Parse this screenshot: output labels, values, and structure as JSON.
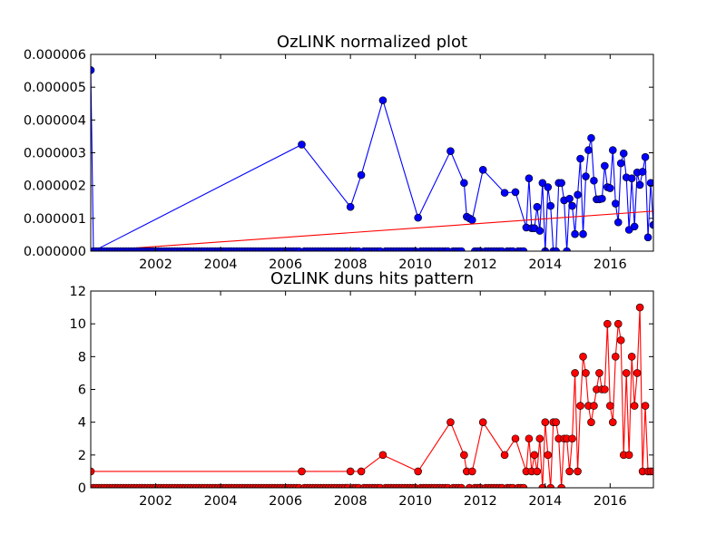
{
  "chart_data": [
    {
      "type": "line",
      "title": "OzLINK normalized plot",
      "xlabel": "",
      "ylabel": "",
      "xlim": [
        2000.0,
        2017.333
      ],
      "ylim": [
        0,
        6e-06
      ],
      "x_ticks": [
        "2002",
        "2004",
        "2006",
        "2008",
        "2010",
        "2012",
        "2014",
        "2016"
      ],
      "y_ticks": [
        "0.000000",
        "0.000001",
        "0.000002",
        "0.000003",
        "0.000004",
        "0.000005",
        "0.000006"
      ],
      "grid": false,
      "colors": {
        "series": "#0000ff",
        "trend": "#ff0000",
        "axes": "#000000"
      },
      "series": [
        {
          "name": "",
          "x": [
            2000.0,
            2000.083,
            2006.5,
            2008.0,
            2008.333,
            2009.0,
            2010.083,
            2011.083,
            2011.5,
            2011.583,
            2011.667,
            2011.75,
            2012.083,
            2012.75,
            2013.083,
            2013.417,
            2013.5,
            2013.583,
            2013.667,
            2013.75,
            2013.833,
            2013.917,
            2014.0,
            2014.083,
            2014.167,
            2014.25,
            2014.333,
            2014.417,
            2014.5,
            2014.583,
            2014.667,
            2014.75,
            2014.833,
            2014.917,
            2015.0,
            2015.083,
            2015.167,
            2015.25,
            2015.333,
            2015.417,
            2015.5,
            2015.583,
            2015.667,
            2015.75,
            2015.833,
            2015.917,
            2016.0,
            2016.083,
            2016.167,
            2016.25,
            2016.333,
            2016.417,
            2016.5,
            2016.583,
            2016.667,
            2016.75,
            2016.833,
            2016.917,
            2017.0,
            2017.083,
            2017.167,
            2017.25,
            2017.333
          ],
          "y": [
            5.52e-06,
            0.0,
            3.25e-06,
            1.35e-06,
            2.32e-06,
            4.6e-06,
            1.02e-06,
            3.05e-06,
            2.08e-06,
            1.05e-06,
            1e-06,
            9.5e-07,
            2.48e-06,
            1.78e-06,
            1.8e-06,
            7.2e-07,
            2.22e-06,
            7e-07,
            7e-07,
            1.35e-06,
            6.2e-07,
            2.08e-06,
            0.0,
            1.95e-06,
            1.38e-06,
            0.0,
            0.0,
            2.08e-06,
            2.08e-06,
            1.55e-06,
            0.0,
            1.6e-06,
            1.38e-06,
            5.2e-07,
            1.72e-06,
            2.82e-06,
            5.2e-07,
            2.28e-06,
            3.08e-06,
            3.45e-06,
            2.15e-06,
            1.58e-06,
            1.58e-06,
            1.6e-06,
            2.6e-06,
            1.95e-06,
            1.92e-06,
            3.08e-06,
            1.45e-06,
            8.8e-07,
            2.68e-06,
            2.98e-06,
            2.25e-06,
            6.5e-07,
            2.22e-06,
            7.5e-07,
            2.4e-06,
            2.02e-06,
            2.42e-06,
            2.87e-06,
            4.2e-07,
            2.08e-06,
            8e-07
          ]
        },
        {
          "name": "",
          "type": "trend",
          "x": [
            2000.0,
            2017.333
          ],
          "y": [
            0.0,
            1.22e-06
          ]
        }
      ]
    },
    {
      "type": "line",
      "title": "OzLINK duns hits pattern",
      "xlabel": "",
      "ylabel": "",
      "xlim": [
        2000.0,
        2017.333
      ],
      "ylim": [
        0,
        12
      ],
      "x_ticks": [
        "2002",
        "2004",
        "2006",
        "2008",
        "2010",
        "2012",
        "2014",
        "2016"
      ],
      "y_ticks": [
        "0",
        "2",
        "4",
        "6",
        "8",
        "10",
        "12"
      ],
      "grid": false,
      "colors": {
        "series": "#ff0000",
        "axes": "#000000"
      },
      "series": [
        {
          "name": "",
          "x": [
            2000.0,
            2006.5,
            2008.0,
            2008.333,
            2009.0,
            2010.083,
            2011.083,
            2011.5,
            2011.583,
            2011.75,
            2012.083,
            2012.75,
            2013.083,
            2013.417,
            2013.5,
            2013.583,
            2013.667,
            2013.75,
            2013.833,
            2013.917,
            2014.0,
            2014.083,
            2014.167,
            2014.25,
            2014.333,
            2014.417,
            2014.5,
            2014.583,
            2014.667,
            2014.75,
            2014.833,
            2014.917,
            2015.0,
            2015.083,
            2015.167,
            2015.25,
            2015.333,
            2015.417,
            2015.5,
            2015.583,
            2015.667,
            2015.75,
            2015.833,
            2015.917,
            2016.0,
            2016.083,
            2016.167,
            2016.25,
            2016.333,
            2016.417,
            2016.5,
            2016.583,
            2016.667,
            2016.75,
            2016.833,
            2016.917,
            2017.0,
            2017.083,
            2017.167,
            2017.25,
            2017.333
          ],
          "y": [
            1,
            1,
            1,
            1,
            2,
            1,
            4,
            2,
            1,
            1,
            4,
            2,
            3,
            1,
            3,
            1,
            2,
            1,
            3,
            0,
            4,
            2,
            0,
            4,
            4,
            3,
            0,
            3,
            3,
            1,
            3,
            7,
            1,
            5,
            8,
            7,
            5,
            4,
            5,
            6,
            7,
            6,
            6,
            10,
            5,
            4,
            8,
            10,
            9,
            2,
            7,
            2,
            8,
            5,
            7,
            11,
            1,
            5,
            1,
            1,
            1
          ]
        }
      ]
    }
  ]
}
